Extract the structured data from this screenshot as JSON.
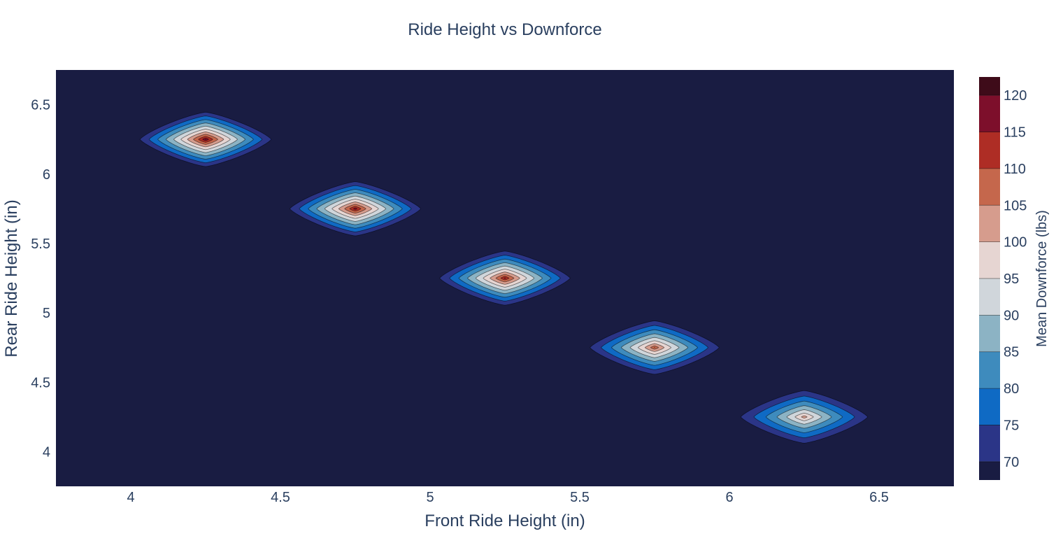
{
  "chart_data": {
    "type": "contour",
    "title": "Ride Height vs Downforce",
    "xlabel": "Front Ride Height (in)",
    "ylabel": "Rear Ride Height (in)",
    "xlim": [
      3.75,
      6.75
    ],
    "ylim": [
      3.75,
      6.75
    ],
    "x_ticks": [
      "4",
      "4.5",
      "5",
      "5.5",
      "6",
      "6.5"
    ],
    "y_ticks": [
      "4",
      "4.5",
      "5",
      "5.5",
      "6",
      "6.5"
    ],
    "colorbar": {
      "title": "Mean Downforce (lbs)",
      "range": [
        67.5,
        122.5
      ],
      "ticks": [
        "70",
        "75",
        "80",
        "85",
        "90",
        "95",
        "100",
        "105",
        "110",
        "115",
        "120"
      ],
      "contour_start": 70,
      "contour_size": 5
    },
    "background_value": 67.5,
    "peaks": [
      {
        "x": 4.25,
        "y": 6.25,
        "value": 121
      },
      {
        "x": 4.75,
        "y": 5.75,
        "value": 119
      },
      {
        "x": 5.25,
        "y": 5.25,
        "value": 117
      },
      {
        "x": 5.75,
        "y": 4.75,
        "value": 111
      },
      {
        "x": 6.25,
        "y": 4.25,
        "value": 104
      }
    ],
    "colorscale": [
      "#191c42",
      "#2b3587",
      "#0f6ac4",
      "#3e8bbd",
      "#8cb3c4",
      "#d0d6db",
      "#e6d5d2",
      "#d69c8d",
      "#c5674c",
      "#ae2d25",
      "#7d0f2b",
      "#3e0b19"
    ]
  }
}
